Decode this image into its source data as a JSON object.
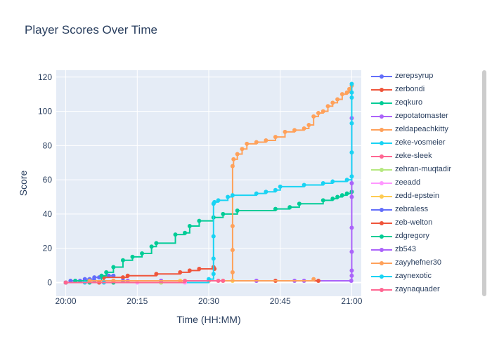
{
  "title": "Player Scores Over Time",
  "chart_data": {
    "type": "line",
    "title": "Player Scores Over Time",
    "xlabel": "Time (HH:MM)",
    "ylabel": "Score",
    "x_ticks": [
      "20:00",
      "20:15",
      "20:30",
      "20:45",
      "21:00"
    ],
    "y_ticks": [
      0,
      20,
      40,
      60,
      80,
      100,
      120
    ],
    "xlim": [
      -2,
      62
    ],
    "ylim": [
      -8,
      124
    ],
    "grid": true,
    "legend_position": "right",
    "series": [
      {
        "name": "zerepsyrup",
        "color": "#636efa",
        "x": [
          0,
          1,
          2,
          3,
          4,
          5,
          6,
          7,
          8,
          9,
          10
        ],
        "y": [
          0,
          1,
          1,
          1,
          2,
          2,
          3,
          3,
          3,
          4,
          4
        ]
      },
      {
        "name": "zerbondi",
        "color": "#ef553b",
        "x": [
          0,
          7,
          8,
          12,
          13,
          19,
          24,
          26,
          28,
          31,
          31.2
        ],
        "y": [
          0,
          0,
          3,
          3,
          4,
          5,
          6,
          7,
          8,
          9,
          8
        ]
      },
      {
        "name": "zeqkuro",
        "color": "#00cc96",
        "x": [
          0,
          2,
          5,
          7.5,
          8.5,
          10,
          12,
          14,
          16,
          18,
          19,
          23,
          25,
          26,
          28,
          31,
          33,
          36,
          44,
          47,
          49,
          54,
          56,
          57,
          58,
          59,
          60
        ],
        "y": [
          0,
          1,
          1,
          4,
          6,
          9,
          13,
          15,
          17,
          21,
          23,
          28,
          29,
          33,
          36,
          38,
          40,
          42,
          43,
          44,
          46,
          48,
          49,
          50,
          51,
          52,
          53
        ]
      },
      {
        "name": "zepotatomaster",
        "color": "#ab63fa",
        "x": [
          0,
          6,
          10,
          13,
          30,
          40,
          50,
          59.9,
          60,
          60,
          60,
          60,
          60,
          60,
          60
        ],
        "y": [
          0,
          1,
          1,
          1,
          1,
          1,
          1,
          1,
          4,
          7,
          18,
          32,
          50,
          58,
          96
        ]
      },
      {
        "name": "zeldapeachkitty",
        "color": "#ffa15a",
        "x": [
          0,
          10,
          20,
          30,
          35,
          35,
          35,
          35,
          35.2,
          36,
          37,
          38,
          40,
          42,
          44,
          46,
          48,
          50,
          51,
          52,
          53,
          54,
          55,
          56,
          57,
          58,
          59,
          59.5,
          60
        ],
        "y": [
          0,
          0,
          0,
          1,
          6,
          19,
          33,
          68,
          72,
          75,
          78,
          81,
          82,
          83,
          85,
          88,
          89,
          90,
          92,
          97,
          99,
          100,
          103,
          105,
          107,
          110,
          111,
          113,
          115
        ]
      },
      {
        "name": "zeke-vosmeier",
        "color": "#19d3f3",
        "x": [
          0,
          30,
          31,
          31,
          31,
          31,
          31.2,
          32,
          34,
          35,
          40,
          42,
          44,
          45,
          50,
          54,
          56,
          59,
          60,
          60,
          60,
          60,
          60,
          60
        ],
        "y": [
          0,
          2,
          5,
          14,
          27,
          46,
          47,
          48,
          50,
          51,
          52,
          53,
          54,
          56,
          57,
          58,
          59,
          60,
          62,
          76,
          93,
          108,
          111,
          116
        ]
      },
      {
        "name": "zeke-sleek",
        "color": "#ff6692",
        "x": [
          0,
          20,
          32
        ],
        "y": [
          0,
          1,
          1
        ]
      },
      {
        "name": "zehran-muqtadir",
        "color": "#b6e880",
        "x": [
          0,
          10,
          20
        ],
        "y": [
          0,
          0,
          0
        ]
      },
      {
        "name": "zeeadd",
        "color": "#ff97ff",
        "x": [
          0,
          15,
          25
        ],
        "y": [
          0,
          0,
          0
        ]
      },
      {
        "name": "zedd-epstein",
        "color": "#fecb52",
        "x": [
          0,
          10,
          24,
          33,
          35
        ],
        "y": [
          0,
          1,
          1,
          1,
          1
        ]
      },
      {
        "name": "zebraless",
        "color": "#636efa",
        "x": [
          0,
          6,
          12
        ],
        "y": [
          0,
          1,
          1
        ]
      },
      {
        "name": "zeb-welton",
        "color": "#ef553b",
        "x": [
          0,
          20,
          44,
          53
        ],
        "y": [
          0,
          1,
          1,
          1
        ]
      },
      {
        "name": "zdgregory",
        "color": "#00cc96",
        "x": [
          0,
          5,
          10
        ],
        "y": [
          0,
          0,
          0
        ]
      },
      {
        "name": "zb543",
        "color": "#ab63fa",
        "x": [
          0,
          20,
          40,
          48
        ],
        "y": [
          0,
          1,
          1,
          1
        ]
      },
      {
        "name": "zayyhefner30",
        "color": "#ffa15a",
        "x": [
          0,
          5,
          10,
          52
        ],
        "y": [
          0,
          1,
          1,
          2
        ]
      },
      {
        "name": "zaynexotic",
        "color": "#19d3f3",
        "x": [
          0,
          4,
          8
        ],
        "y": [
          0,
          0,
          0
        ]
      },
      {
        "name": "zaynaquader",
        "color": "#ff6692",
        "x": [
          0,
          25,
          33
        ],
        "y": [
          0,
          1,
          1
        ]
      }
    ]
  }
}
